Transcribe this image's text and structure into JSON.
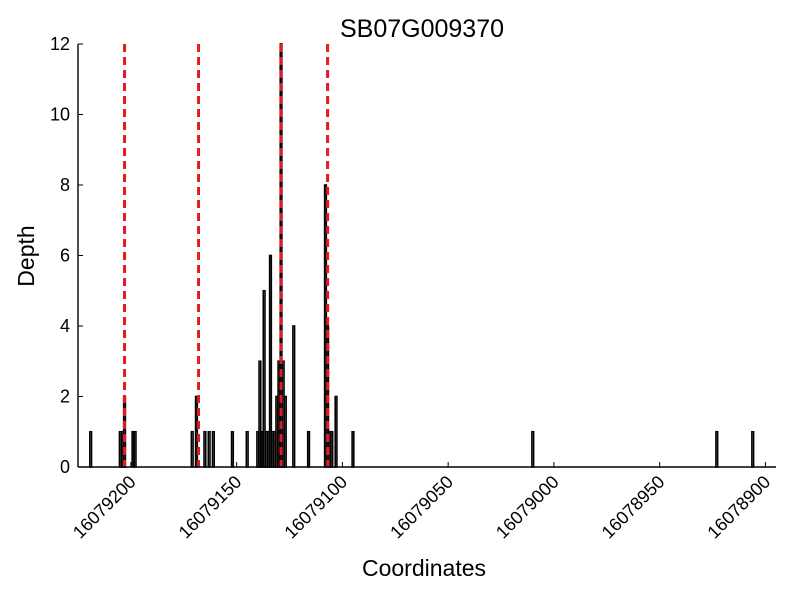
{
  "chart_data": {
    "type": "bar",
    "title": "SB07G009370",
    "xlabel": "Coordinates",
    "ylabel": "Depth",
    "xlim": [
      16079225,
      16078895
    ],
    "ylim": [
      0,
      12
    ],
    "x_inverted": true,
    "xticks": [
      16079200,
      16079150,
      16079100,
      16079050,
      16079000,
      16078950,
      16078900
    ],
    "yticks": [
      0,
      2,
      4,
      6,
      8,
      10,
      12
    ],
    "grid": false,
    "bars": [
      {
        "x": 16079219,
        "y": 1
      },
      {
        "x": 16079205,
        "y": 1
      },
      {
        "x": 16079204,
        "y": 1
      },
      {
        "x": 16079203,
        "y": 2
      },
      {
        "x": 16079199,
        "y": 1
      },
      {
        "x": 16079198,
        "y": 1
      },
      {
        "x": 16079171,
        "y": 1
      },
      {
        "x": 16079169,
        "y": 2
      },
      {
        "x": 16079165,
        "y": 1
      },
      {
        "x": 16079163,
        "y": 1
      },
      {
        "x": 16079161,
        "y": 1
      },
      {
        "x": 16079152,
        "y": 1
      },
      {
        "x": 16079145,
        "y": 1
      },
      {
        "x": 16079140,
        "y": 1
      },
      {
        "x": 16079139,
        "y": 3
      },
      {
        "x": 16079138,
        "y": 1
      },
      {
        "x": 16079137,
        "y": 5
      },
      {
        "x": 16079136,
        "y": 1
      },
      {
        "x": 16079135,
        "y": 1
      },
      {
        "x": 16079134,
        "y": 6
      },
      {
        "x": 16079133,
        "y": 1
      },
      {
        "x": 16079132,
        "y": 1
      },
      {
        "x": 16079131,
        "y": 2
      },
      {
        "x": 16079130,
        "y": 3
      },
      {
        "x": 16079129,
        "y": 12
      },
      {
        "x": 16079128,
        "y": 3
      },
      {
        "x": 16079127,
        "y": 2
      },
      {
        "x": 16079123,
        "y": 4
      },
      {
        "x": 16079116,
        "y": 1
      },
      {
        "x": 16079108,
        "y": 8
      },
      {
        "x": 16079107,
        "y": 4
      },
      {
        "x": 16079106,
        "y": 1
      },
      {
        "x": 16079105,
        "y": 1
      },
      {
        "x": 16079103,
        "y": 2
      },
      {
        "x": 16079095,
        "y": 1
      },
      {
        "x": 16079010,
        "y": 1
      },
      {
        "x": 16078923,
        "y": 1
      },
      {
        "x": 16078906,
        "y": 1
      }
    ],
    "reference_lines": [
      16079203,
      16079168,
      16079129,
      16079107
    ],
    "reference_line_color": "#e41a1c",
    "bar_edge_color": "#000000",
    "bar_fill_color": "#ffffff"
  }
}
